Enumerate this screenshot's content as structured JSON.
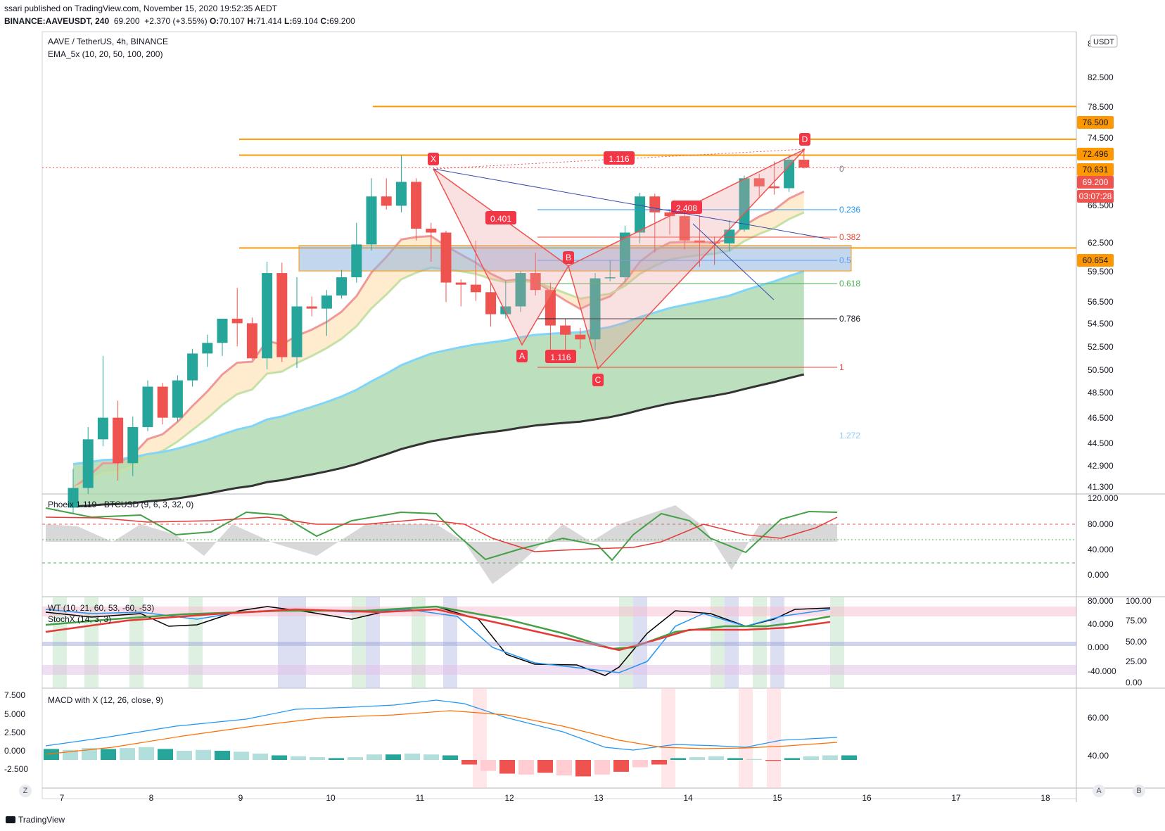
{
  "header": {
    "published": "ssari published on TradingView.com, November 15, 2020 19:52:35 AEDT",
    "symbol": "BINANCE:AAVEUSDT, 240",
    "price": "69.200",
    "change": "+2.370 (+3.55%)",
    "o_label": "O:",
    "o": "70.107",
    "h_label": "H:",
    "h": "71.414",
    "l_label": "L:",
    "l": "69.104",
    "c_label": "C:",
    "c": "69.200"
  },
  "main_legend": {
    "title": "AAVE / TetherUS, 4h, BINANCE",
    "ema": "EMA_5x (10, 20, 50, 100, 200)"
  },
  "panes": {
    "phoeix": "Phoeix 1.119 · BTCUSD (9, 6, 3, 32, 0)",
    "wt": "WT (10, 21, 60, 53, -60, -53)",
    "stoch": "StochX (14, 3, 3)",
    "macd": "MACD with X (12, 26, close, 9)"
  },
  "axis": {
    "currency": "USDT",
    "x_ticks": [
      "7",
      "8",
      "9",
      "10",
      "11",
      "12",
      "13",
      "14",
      "15",
      "16",
      "17",
      "18"
    ],
    "y_ticks": [
      "82.500",
      "78.500",
      "74.500",
      "66.500",
      "62.500",
      "59.500",
      "56.500",
      "54.500",
      "52.500",
      "50.500",
      "48.500",
      "46.500",
      "44.500",
      "42.900",
      "41.300"
    ],
    "y_top_partial": "8",
    "price_tags": [
      {
        "text": "76.500",
        "color": "#ff9800",
        "text_color": "#131722"
      },
      {
        "text": "72.496",
        "color": "#ff9800",
        "text_color": "#131722"
      },
      {
        "text": "70.631",
        "color": "#ff9800",
        "text_color": "#131722"
      },
      {
        "text": "69.200",
        "color": "#ef5350",
        "text_color": "#ffffff"
      },
      {
        "text": "03:07:28",
        "color": "#ef5350",
        "text_color": "#ffffff"
      },
      {
        "text": "60.654",
        "color": "#ff9800",
        "text_color": "#131722"
      }
    ],
    "phoeix_ticks": [
      "120.000",
      "80.000",
      "40.000",
      "0.000"
    ],
    "wt_ticks": [
      "80.000",
      "40.000",
      "0.000",
      "-40.000"
    ],
    "stoch_ticks": [
      "100.00",
      "75.00",
      "50.00",
      "25.00",
      "0.00"
    ],
    "macd_ticks_right": [
      "60.00",
      "40.00"
    ],
    "macd_ticks_left": [
      "7.500",
      "5.000",
      "2.500",
      "0.000",
      "-2.500"
    ]
  },
  "pattern": {
    "points": [
      "X",
      "A",
      "B",
      "C",
      "D"
    ],
    "ratios": [
      "1.116",
      "0.401",
      "2.408",
      "1.116"
    ]
  },
  "fib": [
    {
      "level": "0",
      "color": "#787b86"
    },
    {
      "level": "0.236",
      "color": "#2196f3"
    },
    {
      "level": "0.382",
      "color": "#f44336"
    },
    {
      "level": "0.5",
      "color": "#5b9cf6"
    },
    {
      "level": "0.618",
      "color": "#4caf50"
    },
    {
      "level": "0.786",
      "color": "#131722"
    },
    {
      "level": "1",
      "color": "#f44336"
    },
    {
      "level": "1.272",
      "color": "#90caf9"
    }
  ],
  "footer": {
    "brand": "TradingView",
    "btn_a": "A",
    "btn_b": "B",
    "btn_z": "Z"
  },
  "chart_data": {
    "type": "candlestick",
    "title": "AAVE / TetherUS, 4h, BINANCE",
    "x_ticks": [
      "7",
      "8",
      "9",
      "10",
      "11",
      "12",
      "13",
      "14",
      "15",
      "16",
      "17",
      "18"
    ],
    "ylim": [
      40.5,
      86.5
    ],
    "y_scale": "log",
    "horizontal_levels": [
      76.5,
      72.496,
      70.631,
      69.2,
      60.654
    ],
    "candles": [
      {
        "o": 39.6,
        "h": 42.2,
        "l": 39.2,
        "c": 40.9
      },
      {
        "o": 40.9,
        "h": 45.2,
        "l": 40.5,
        "c": 44.3
      },
      {
        "o": 44.3,
        "h": 50.8,
        "l": 43.8,
        "c": 45.9
      },
      {
        "o": 45.9,
        "h": 47.2,
        "l": 41.4,
        "c": 42.6
      },
      {
        "o": 42.6,
        "h": 46.0,
        "l": 41.7,
        "c": 45.2
      },
      {
        "o": 45.2,
        "h": 48.8,
        "l": 44.9,
        "c": 48.3
      },
      {
        "o": 48.3,
        "h": 48.6,
        "l": 45.4,
        "c": 45.9
      },
      {
        "o": 45.9,
        "h": 49.2,
        "l": 45.6,
        "c": 48.8
      },
      {
        "o": 48.8,
        "h": 51.4,
        "l": 48.3,
        "c": 51.0
      },
      {
        "o": 51.0,
        "h": 52.6,
        "l": 49.9,
        "c": 51.9
      },
      {
        "o": 51.9,
        "h": 53.9,
        "l": 50.8,
        "c": 54.0
      },
      {
        "o": 54.0,
        "h": 56.8,
        "l": 51.6,
        "c": 53.6
      },
      {
        "o": 53.6,
        "h": 54.1,
        "l": 50.5,
        "c": 50.6
      },
      {
        "o": 50.6,
        "h": 59.3,
        "l": 49.7,
        "c": 58.2
      },
      {
        "o": 58.2,
        "h": 59.2,
        "l": 50.3,
        "c": 50.7
      },
      {
        "o": 50.7,
        "h": 57.8,
        "l": 49.8,
        "c": 55.1
      },
      {
        "o": 55.1,
        "h": 56.0,
        "l": 54.2,
        "c": 54.9
      },
      {
        "o": 54.9,
        "h": 56.6,
        "l": 52.5,
        "c": 56.1
      },
      {
        "o": 56.1,
        "h": 58.5,
        "l": 55.8,
        "c": 57.8
      },
      {
        "o": 57.8,
        "h": 63.2,
        "l": 57.3,
        "c": 61.0
      },
      {
        "o": 61.0,
        "h": 68.0,
        "l": 60.4,
        "c": 66.0
      },
      {
        "o": 66.0,
        "h": 68.0,
        "l": 64.6,
        "c": 65.0
      },
      {
        "o": 65.0,
        "h": 70.6,
        "l": 64.3,
        "c": 67.6
      },
      {
        "o": 67.6,
        "h": 68.0,
        "l": 61.4,
        "c": 62.6
      },
      {
        "o": 62.6,
        "h": 63.2,
        "l": 59.3,
        "c": 62.2
      },
      {
        "o": 62.2,
        "h": 62.4,
        "l": 55.5,
        "c": 57.3
      },
      {
        "o": 57.3,
        "h": 57.6,
        "l": 55.1,
        "c": 57.1
      },
      {
        "o": 57.1,
        "h": 61.4,
        "l": 55.6,
        "c": 56.4
      },
      {
        "o": 56.4,
        "h": 57.2,
        "l": 53.3,
        "c": 54.4
      },
      {
        "o": 54.4,
        "h": 57.5,
        "l": 54.0,
        "c": 55.1
      },
      {
        "o": 55.1,
        "h": 58.4,
        "l": 54.6,
        "c": 58.2
      },
      {
        "o": 58.2,
        "h": 60.2,
        "l": 56.1,
        "c": 56.6
      },
      {
        "o": 56.6,
        "h": 57.3,
        "l": 51.3,
        "c": 53.4
      },
      {
        "o": 53.4,
        "h": 54.0,
        "l": 50.7,
        "c": 52.6
      },
      {
        "o": 52.6,
        "h": 53.2,
        "l": 51.4,
        "c": 52.2
      },
      {
        "o": 52.2,
        "h": 58.2,
        "l": 51.3,
        "c": 57.7
      },
      {
        "o": 57.7,
        "h": 59.4,
        "l": 57.4,
        "c": 57.8
      },
      {
        "o": 57.8,
        "h": 62.9,
        "l": 57.4,
        "c": 62.2
      },
      {
        "o": 62.2,
        "h": 66.4,
        "l": 61.1,
        "c": 66.0
      },
      {
        "o": 66.0,
        "h": 66.3,
        "l": 60.2,
        "c": 64.3
      },
      {
        "o": 64.3,
        "h": 64.6,
        "l": 62.0,
        "c": 63.9
      },
      {
        "o": 63.9,
        "h": 64.3,
        "l": 60.5,
        "c": 61.4
      },
      {
        "o": 61.4,
        "h": 64.0,
        "l": 58.8,
        "c": 61.2
      },
      {
        "o": 61.2,
        "h": 61.8,
        "l": 59.0,
        "c": 61.1
      },
      {
        "o": 61.1,
        "h": 63.5,
        "l": 60.3,
        "c": 62.5
      },
      {
        "o": 62.5,
        "h": 68.3,
        "l": 62.3,
        "c": 68.0
      },
      {
        "o": 68.0,
        "h": 68.5,
        "l": 66.0,
        "c": 67.1
      },
      {
        "o": 67.1,
        "h": 69.9,
        "l": 66.2,
        "c": 66.9
      },
      {
        "o": 66.9,
        "h": 70.6,
        "l": 66.5,
        "c": 70.1
      },
      {
        "o": 70.1,
        "h": 71.4,
        "l": 69.1,
        "c": 69.2
      }
    ]
  }
}
